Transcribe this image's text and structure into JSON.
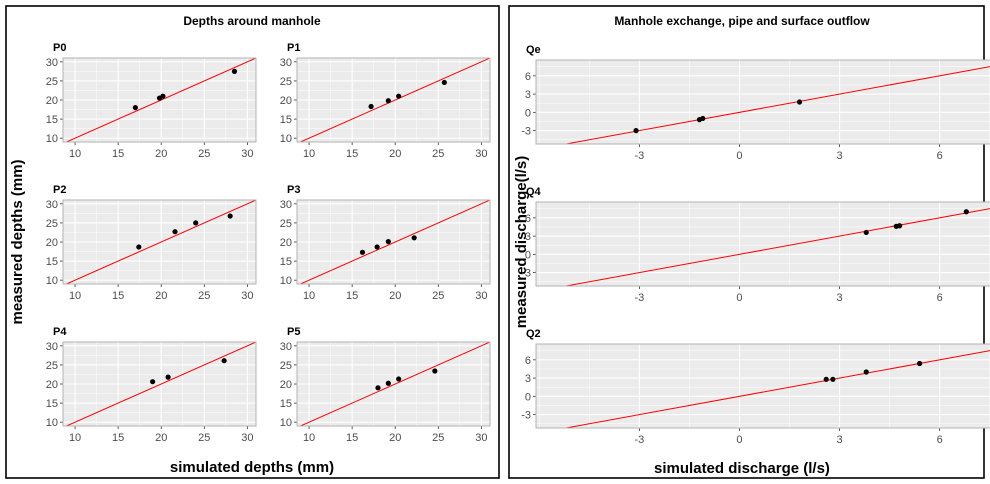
{
  "chart_data": [
    {
      "type": "scatter",
      "title": "Depths around manhole",
      "xlabel": "simulated depths (mm)",
      "ylabel": "measured depths (mm)",
      "xlim": [
        8.6,
        31
      ],
      "ylim": [
        9,
        31
      ],
      "xticks": [
        10,
        15,
        20,
        25,
        30
      ],
      "yticks": [
        10,
        15,
        20,
        25,
        30
      ],
      "reference_line": "y = x",
      "line_color": "#ff0000",
      "grid": true,
      "panels": [
        {
          "name": "P0",
          "points": [
            {
              "x": 17.0,
              "y": 18.0
            },
            {
              "x": 19.8,
              "y": 20.5
            },
            {
              "x": 20.2,
              "y": 21.0
            },
            {
              "x": 28.5,
              "y": 27.5
            }
          ]
        },
        {
          "name": "P1",
          "points": [
            {
              "x": 17.2,
              "y": 18.3
            },
            {
              "x": 19.2,
              "y": 19.8
            },
            {
              "x": 20.4,
              "y": 21.0
            },
            {
              "x": 25.7,
              "y": 24.6
            }
          ]
        },
        {
          "name": "P2",
          "points": [
            {
              "x": 17.4,
              "y": 18.7
            },
            {
              "x": 21.6,
              "y": 22.7
            },
            {
              "x": 24.0,
              "y": 25.0
            },
            {
              "x": 28.0,
              "y": 26.8
            }
          ]
        },
        {
          "name": "P3",
          "points": [
            {
              "x": 16.2,
              "y": 17.3
            },
            {
              "x": 17.9,
              "y": 18.7
            },
            {
              "x": 19.2,
              "y": 20.1
            },
            {
              "x": 22.2,
              "y": 21.1
            }
          ]
        },
        {
          "name": "P4",
          "points": [
            {
              "x": 19.0,
              "y": 20.6
            },
            {
              "x": 20.8,
              "y": 21.8
            },
            {
              "x": 27.3,
              "y": 26.1
            }
          ]
        },
        {
          "name": "P5",
          "points": [
            {
              "x": 18.0,
              "y": 19.0
            },
            {
              "x": 19.2,
              "y": 20.2
            },
            {
              "x": 20.4,
              "y": 21.3
            },
            {
              "x": 24.6,
              "y": 23.4
            }
          ]
        }
      ]
    },
    {
      "type": "scatter",
      "title": "Manhole exchange, pipe and surface outflow",
      "xlabel": "simulated discharge (l/s)",
      "ylabel": "measured discharge(l/s)",
      "xlim": [
        -6.1,
        7.6
      ],
      "ylim": [
        -5.2,
        8.6
      ],
      "xticks": [
        -3,
        0,
        3,
        6
      ],
      "yticks": [
        -3,
        0,
        3,
        6
      ],
      "reference_line": "y = x",
      "line_color": "#ff0000",
      "grid": true,
      "panels": [
        {
          "name": "Qe",
          "points": [
            {
              "x": -3.1,
              "y": -3.0
            },
            {
              "x": -1.2,
              "y": -1.2
            },
            {
              "x": -1.1,
              "y": -1.0
            },
            {
              "x": 1.8,
              "y": 1.7
            }
          ]
        },
        {
          "name": "Q4",
          "points": [
            {
              "x": 3.8,
              "y": 3.6
            },
            {
              "x": 4.7,
              "y": 4.6
            },
            {
              "x": 4.8,
              "y": 4.7
            },
            {
              "x": 6.8,
              "y": 7.0
            }
          ]
        },
        {
          "name": "Q2",
          "points": [
            {
              "x": 2.6,
              "y": 2.8
            },
            {
              "x": 2.8,
              "y": 2.8
            },
            {
              "x": 3.8,
              "y": 4.0
            },
            {
              "x": 5.4,
              "y": 5.4
            }
          ]
        }
      ]
    }
  ]
}
